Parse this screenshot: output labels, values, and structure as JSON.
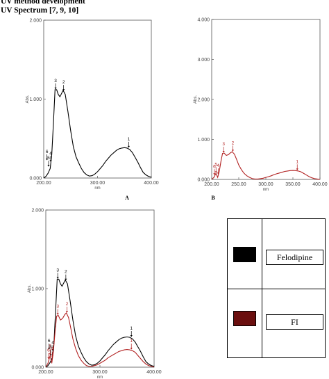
{
  "page": {
    "heading_line1": "UV method development",
    "heading_line2": "UV Spectrum [7, 9, 10]"
  },
  "colors": {
    "felodipine": "#000000",
    "fi": "#b22222",
    "legend_fi_swatch": "#6b0f0f"
  },
  "legend": {
    "entries": [
      {
        "label": "Felodipine",
        "swatch_color": "#000000"
      },
      {
        "label": "FI",
        "swatch_color": "#6b0f0f"
      }
    ]
  },
  "chart_data": [
    {
      "panel_label": "A",
      "type": "line",
      "xlabel": "nm",
      "ylabel": "Abs.",
      "xlim": [
        200,
        400
      ],
      "ylim": [
        0,
        2
      ],
      "x_ticks": [
        "200.00",
        "300.00",
        "400.00"
      ],
      "y_ticks": [
        "0.000",
        "1.000",
        "2.000"
      ],
      "grid": false,
      "series": [
        {
          "color": "#000000",
          "x": [
            200,
            204,
            208,
            212,
            215,
            218,
            221,
            224,
            227,
            230,
            233,
            236,
            240,
            245,
            250,
            255,
            260,
            265,
            270,
            275,
            280,
            285,
            290,
            295,
            300,
            305,
            310,
            315,
            320,
            325,
            330,
            335,
            340,
            345,
            350,
            355,
            360,
            365,
            370,
            375,
            380,
            385,
            390,
            395,
            400
          ],
          "y": [
            0.0,
            0.02,
            0.06,
            0.12,
            0.3,
            0.7,
            1.12,
            1.12,
            1.06,
            1.03,
            1.07,
            1.11,
            1.06,
            0.84,
            0.6,
            0.4,
            0.27,
            0.19,
            0.12,
            0.07,
            0.04,
            0.025,
            0.03,
            0.05,
            0.08,
            0.12,
            0.16,
            0.21,
            0.25,
            0.29,
            0.32,
            0.35,
            0.37,
            0.38,
            0.385,
            0.38,
            0.36,
            0.32,
            0.26,
            0.2,
            0.13,
            0.07,
            0.04,
            0.02,
            0.01
          ]
        }
      ],
      "peak_markers": [
        {
          "label": "1",
          "x": 358,
          "y": 0.38,
          "color": "#000000"
        },
        {
          "label": "2",
          "x": 237,
          "y": 1.1,
          "color": "#000000"
        },
        {
          "label": "3",
          "x": 222,
          "y": 1.12,
          "color": "#000000"
        },
        {
          "label": "4",
          "x": 213,
          "y": 0.2,
          "color": "#000000"
        },
        {
          "label": "5",
          "x": 209,
          "y": 0.14,
          "color": "#000000"
        },
        {
          "label": "6",
          "x": 206,
          "y": 0.22,
          "color": "#000000"
        }
      ]
    },
    {
      "panel_label": "B",
      "type": "line",
      "xlabel": "nm",
      "ylabel": "Abs.",
      "xlim": [
        200,
        400
      ],
      "ylim": [
        0,
        4
      ],
      "x_ticks": [
        "200.00",
        "250.00",
        "300.00",
        "350.00",
        "400.00"
      ],
      "y_ticks": [
        "0.000",
        "1.000",
        "2.000",
        "3.000",
        "4.000"
      ],
      "grid": false,
      "series": [
        {
          "color": "#b22222",
          "x": [
            200,
            204,
            208,
            211,
            214,
            217,
            220,
            223,
            227,
            231,
            235,
            238,
            242,
            246,
            250,
            255,
            260,
            265,
            270,
            275,
            280,
            285,
            290,
            295,
            300,
            305,
            310,
            315,
            320,
            325,
            330,
            335,
            340,
            345,
            350,
            355,
            360,
            365,
            370,
            375,
            380,
            385,
            390,
            395,
            400
          ],
          "y": [
            0.0,
            0.05,
            0.15,
            0.05,
            0.2,
            0.45,
            0.65,
            0.66,
            0.6,
            0.62,
            0.67,
            0.69,
            0.63,
            0.5,
            0.36,
            0.24,
            0.15,
            0.09,
            0.05,
            0.02,
            0.01,
            0.01,
            0.02,
            0.03,
            0.05,
            0.07,
            0.09,
            0.12,
            0.14,
            0.16,
            0.18,
            0.2,
            0.21,
            0.22,
            0.225,
            0.22,
            0.21,
            0.19,
            0.15,
            0.11,
            0.07,
            0.04,
            0.02,
            0.01,
            0.0
          ]
        }
      ],
      "peak_markers": [
        {
          "label": "1",
          "x": 358,
          "y": 0.22,
          "color": "#b22222"
        },
        {
          "label": "2",
          "x": 239,
          "y": 0.69,
          "color": "#b22222"
        },
        {
          "label": "3",
          "x": 222,
          "y": 0.66,
          "color": "#b22222"
        },
        {
          "label": "4",
          "x": 212,
          "y": 0.12,
          "color": "#b22222"
        },
        {
          "label": "5",
          "x": 208,
          "y": 0.15,
          "color": "#b22222"
        },
        {
          "label": "6",
          "x": 205,
          "y": 0.1,
          "color": "#b22222"
        }
      ]
    },
    {
      "panel_label": "",
      "type": "line",
      "xlabel": "nm",
      "ylabel": "Abs.",
      "xlim": [
        200,
        400
      ],
      "ylim": [
        0,
        2
      ],
      "x_ticks": [
        "200.00",
        "300.00",
        "400.00"
      ],
      "y_ticks": [
        "0.000",
        "1.000",
        "2.000"
      ],
      "grid": false,
      "series": [
        {
          "color": "#000000",
          "x": [
            200,
            204,
            208,
            212,
            215,
            218,
            221,
            224,
            227,
            230,
            233,
            236,
            240,
            245,
            250,
            255,
            260,
            265,
            270,
            275,
            280,
            285,
            290,
            295,
            300,
            305,
            310,
            315,
            320,
            325,
            330,
            335,
            340,
            345,
            350,
            355,
            360,
            365,
            370,
            375,
            380,
            385,
            390,
            395,
            400
          ],
          "y": [
            0.0,
            0.02,
            0.06,
            0.12,
            0.3,
            0.7,
            1.12,
            1.12,
            1.06,
            1.03,
            1.07,
            1.11,
            1.06,
            0.84,
            0.6,
            0.4,
            0.27,
            0.19,
            0.12,
            0.07,
            0.04,
            0.025,
            0.03,
            0.05,
            0.08,
            0.12,
            0.16,
            0.21,
            0.25,
            0.29,
            0.32,
            0.35,
            0.37,
            0.38,
            0.385,
            0.38,
            0.36,
            0.32,
            0.26,
            0.2,
            0.13,
            0.07,
            0.04,
            0.02,
            0.01
          ]
        },
        {
          "color": "#b22222",
          "x": [
            200,
            204,
            208,
            211,
            214,
            217,
            220,
            223,
            227,
            231,
            235,
            238,
            242,
            246,
            250,
            255,
            260,
            265,
            270,
            275,
            280,
            285,
            290,
            295,
            300,
            305,
            310,
            315,
            320,
            325,
            330,
            335,
            340,
            345,
            350,
            355,
            360,
            365,
            370,
            375,
            380,
            385,
            390,
            395,
            400
          ],
          "y": [
            0.0,
            0.05,
            0.15,
            0.05,
            0.2,
            0.45,
            0.65,
            0.66,
            0.6,
            0.62,
            0.67,
            0.69,
            0.63,
            0.5,
            0.36,
            0.24,
            0.15,
            0.09,
            0.05,
            0.02,
            0.01,
            0.01,
            0.02,
            0.03,
            0.05,
            0.07,
            0.09,
            0.12,
            0.14,
            0.16,
            0.18,
            0.2,
            0.21,
            0.22,
            0.225,
            0.22,
            0.21,
            0.19,
            0.15,
            0.11,
            0.07,
            0.04,
            0.02,
            0.01,
            0.0
          ]
        }
      ],
      "peak_markers": [
        {
          "label": "1",
          "x": 358,
          "y": 0.38,
          "color": "#000000"
        },
        {
          "label": "2",
          "x": 237,
          "y": 1.1,
          "color": "#000000"
        },
        {
          "label": "3",
          "x": 222,
          "y": 1.12,
          "color": "#000000"
        },
        {
          "label": "4",
          "x": 213,
          "y": 0.2,
          "color": "#000000"
        },
        {
          "label": "5",
          "x": 209,
          "y": 0.14,
          "color": "#000000"
        },
        {
          "label": "6",
          "x": 206,
          "y": 0.22,
          "color": "#000000"
        },
        {
          "label": "1",
          "x": 358,
          "y": 0.22,
          "color": "#b22222"
        },
        {
          "label": "2",
          "x": 239,
          "y": 0.69,
          "color": "#b22222"
        },
        {
          "label": "3",
          "x": 222,
          "y": 0.66,
          "color": "#b22222"
        },
        {
          "label": "4",
          "x": 212,
          "y": 0.12,
          "color": "#b22222"
        },
        {
          "label": "5",
          "x": 208,
          "y": 0.15,
          "color": "#b22222"
        },
        {
          "label": "6",
          "x": 205,
          "y": 0.1,
          "color": "#b22222"
        }
      ]
    }
  ]
}
